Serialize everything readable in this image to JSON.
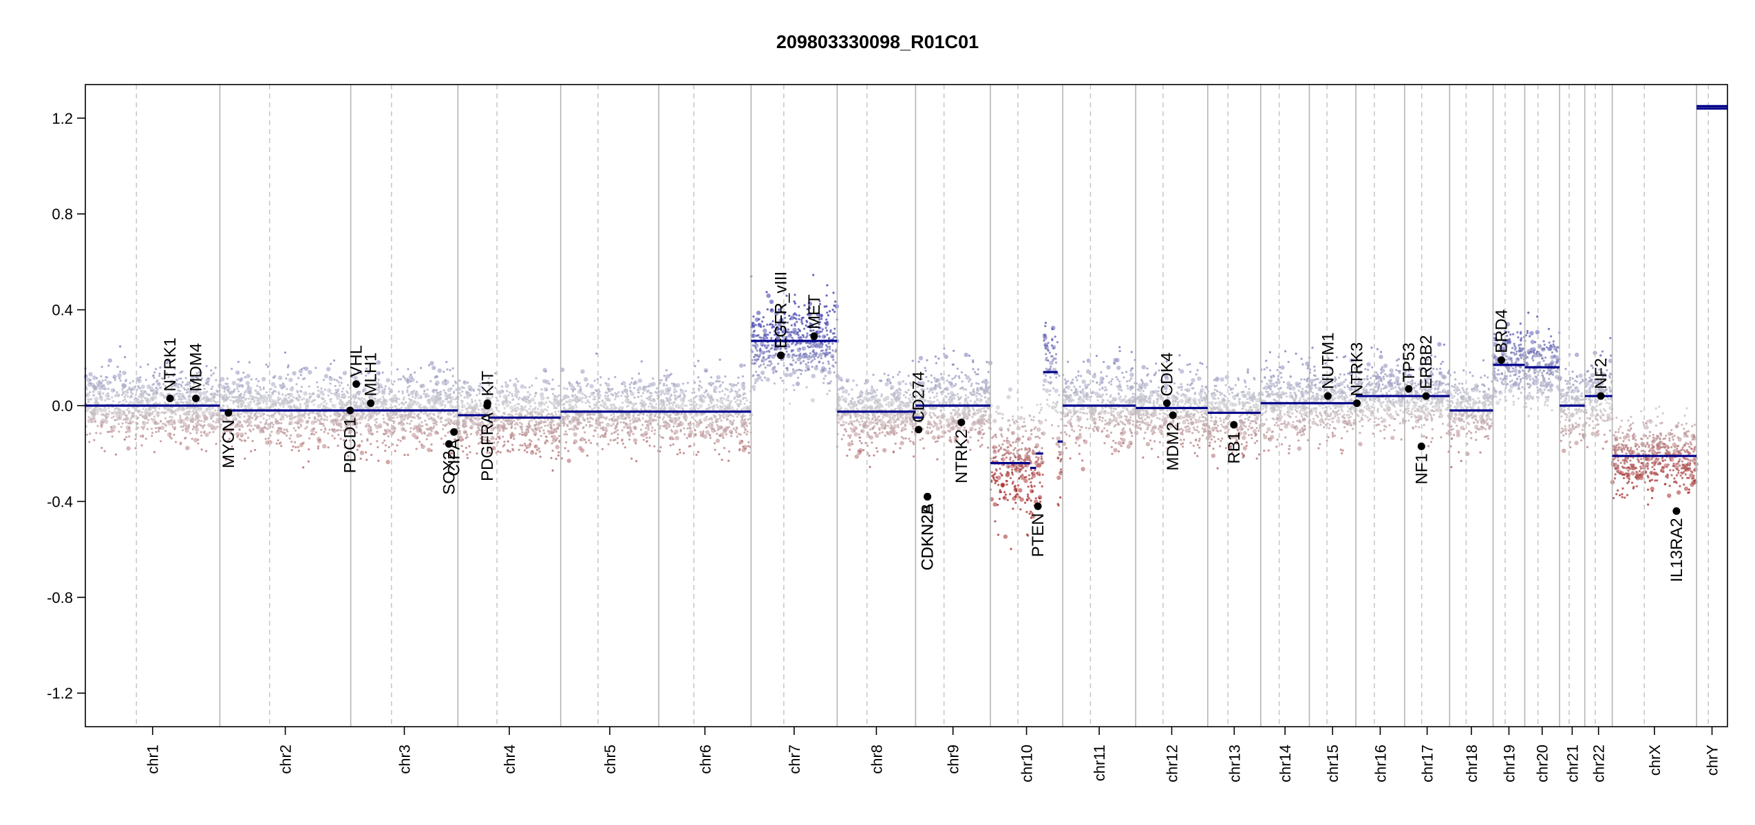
{
  "chart_data": {
    "type": "scatter",
    "title": "209803330098_R01C01",
    "xlabel": "",
    "ylabel": "",
    "ylim": [
      -1.34,
      1.34
    ],
    "yticks": [
      "1.2",
      "0.8",
      "0.4",
      "0.0",
      "-0.4",
      "-0.8",
      "-1.2"
    ],
    "chromosomes": [
      {
        "name": "chr1",
        "length": 248.9
      },
      {
        "name": "chr2",
        "length": 242.2
      },
      {
        "name": "chr3",
        "length": 198.3
      },
      {
        "name": "chr4",
        "length": 190.2
      },
      {
        "name": "chr5",
        "length": 181.5
      },
      {
        "name": "chr6",
        "length": 170.8
      },
      {
        "name": "chr7",
        "length": 159.3
      },
      {
        "name": "chr8",
        "length": 145.1
      },
      {
        "name": "chr9",
        "length": 138.4
      },
      {
        "name": "chr10",
        "length": 133.8
      },
      {
        "name": "chr11",
        "length": 135.1
      },
      {
        "name": "chr12",
        "length": 133.3
      },
      {
        "name": "chr13",
        "length": 98.0
      },
      {
        "name": "chr14",
        "length": 90.0
      },
      {
        "name": "chr15",
        "length": 86.0
      },
      {
        "name": "chr16",
        "length": 90.3
      },
      {
        "name": "chr17",
        "length": 83.3
      },
      {
        "name": "chr18",
        "length": 80.4
      },
      {
        "name": "chr19",
        "length": 58.6
      },
      {
        "name": "chr20",
        "length": 64.4
      },
      {
        "name": "chr21",
        "length": 46.7
      },
      {
        "name": "chr22",
        "length": 50.8
      },
      {
        "name": "chrX",
        "length": 156.0
      },
      {
        "name": "chrY",
        "length": 57.2
      }
    ],
    "segments": [
      {
        "chr": "chr1",
        "start": 0,
        "end": 1,
        "value": 0.0
      },
      {
        "chr": "chr2",
        "start": 0,
        "end": 1,
        "value": -0.02
      },
      {
        "chr": "chr3",
        "start": 0,
        "end": 1,
        "value": -0.02
      },
      {
        "chr": "chr4",
        "start": 0,
        "end": 0.3,
        "value": -0.04
      },
      {
        "chr": "chr4",
        "start": 0.3,
        "end": 1,
        "value": -0.05
      },
      {
        "chr": "chr5",
        "start": 0,
        "end": 1,
        "value": -0.025
      },
      {
        "chr": "chr6",
        "start": 0,
        "end": 1,
        "value": -0.025
      },
      {
        "chr": "chr7",
        "start": 0,
        "end": 1,
        "value": 0.27
      },
      {
        "chr": "chr8",
        "start": 0,
        "end": 1,
        "value": -0.025
      },
      {
        "chr": "chr8",
        "start": 0.98,
        "end": 1.1,
        "value": -0.05
      },
      {
        "chr": "chr9",
        "start": 0,
        "end": 1,
        "value": 0.0
      },
      {
        "chr": "chr10",
        "start": 0,
        "end": 0.55,
        "value": -0.24
      },
      {
        "chr": "chr10",
        "start": 0.55,
        "end": 0.63,
        "value": -0.26
      },
      {
        "chr": "chr10",
        "start": 0.63,
        "end": 0.73,
        "value": -0.2
      },
      {
        "chr": "chr10",
        "start": 0.73,
        "end": 0.93,
        "value": 0.14
      },
      {
        "chr": "chr10",
        "start": 0.93,
        "end": 1,
        "value": -0.15
      },
      {
        "chr": "chr11",
        "start": 0,
        "end": 1,
        "value": 0.0
      },
      {
        "chr": "chr12",
        "start": 0,
        "end": 1,
        "value": -0.01
      },
      {
        "chr": "chr13",
        "start": 0,
        "end": 1,
        "value": -0.03
      },
      {
        "chr": "chr14",
        "start": 0,
        "end": 1,
        "value": 0.01
      },
      {
        "chr": "chr15",
        "start": 0,
        "end": 1,
        "value": 0.01
      },
      {
        "chr": "chr16",
        "start": 0,
        "end": 1,
        "value": 0.04
      },
      {
        "chr": "chr17",
        "start": 0,
        "end": 1,
        "value": 0.04
      },
      {
        "chr": "chr18",
        "start": 0,
        "end": 1,
        "value": -0.02
      },
      {
        "chr": "chr19",
        "start": 0,
        "end": 1,
        "value": 0.17
      },
      {
        "chr": "chr20",
        "start": 0,
        "end": 1,
        "value": 0.16
      },
      {
        "chr": "chr21",
        "start": 0,
        "end": 1,
        "value": 0.0
      },
      {
        "chr": "chr22",
        "start": 0,
        "end": 1,
        "value": 0.04
      },
      {
        "chrX": true,
        "chr": "chrX",
        "start": 0,
        "end": 1,
        "value": -0.21
      },
      {
        "chr": "chrY",
        "start": 0,
        "end": 1,
        "value": 1.24
      },
      {
        "chr": "chrY",
        "start": 0,
        "end": 1,
        "value": 1.25
      }
    ],
    "genes": [
      {
        "name": "NTRK1",
        "chr": "chr1",
        "pos": 156.8,
        "value": 0.03,
        "label_side": "above"
      },
      {
        "name": "MDM4",
        "chr": "chr1",
        "pos": 204.5,
        "value": 0.03,
        "label_side": "above"
      },
      {
        "name": "MYCN",
        "chr": "chr2",
        "pos": 15.9,
        "value": -0.03,
        "label_side": "below"
      },
      {
        "name": "VHL",
        "chr": "chr3",
        "pos": 10.2,
        "value": 0.09,
        "label_side": "above"
      },
      {
        "name": "PDCD1",
        "chr": "chr2",
        "pos": 241.0,
        "value": -0.02,
        "label_side": "below"
      },
      {
        "name": "MLH1",
        "chr": "chr3",
        "pos": 37.0,
        "value": 0.01,
        "label_side": "above"
      },
      {
        "name": "SOX2",
        "chr": "chr3",
        "pos": 181.7,
        "value": -0.16,
        "label_side": "below"
      },
      {
        "name": "CIPA",
        "chr": "chr3",
        "pos": 191.0,
        "value": -0.11,
        "label_side": "below"
      },
      {
        "name": "PDGFRA",
        "chr": "chr4",
        "pos": 54.2,
        "value": 0.0,
        "label_side": "below"
      },
      {
        "name": "KIT",
        "chr": "chr4",
        "pos": 54.7,
        "value": 0.01,
        "label_side": "above"
      },
      {
        "name": "EGFR",
        "chr": "chr7",
        "pos": 55.1,
        "value": 0.21,
        "label_side": "above"
      },
      {
        "name": "EGFR_vIII",
        "chr": "chr7",
        "pos": 55.2,
        "value": 0.21,
        "label_side": "above"
      },
      {
        "name": "MET",
        "chr": "chr7",
        "pos": 116.7,
        "value": 0.29,
        "label_side": "above"
      },
      {
        "name": "CD274",
        "chr": "chr9",
        "pos": 5.5,
        "value": -0.1,
        "label_side": "above"
      },
      {
        "name": "CDKN2A",
        "chr": "chr9",
        "pos": 21.9,
        "value": -0.38,
        "label_side": "below"
      },
      {
        "name": "CDKN2B",
        "chr": "chr9",
        "pos": 22.0,
        "value": -0.38,
        "label_side": "below"
      },
      {
        "name": "NTRK2",
        "chr": "chr9",
        "pos": 84.7,
        "value": -0.07,
        "label_side": "below"
      },
      {
        "name": "PTEN",
        "chr": "chr10",
        "pos": 87.9,
        "value": -0.42,
        "label_side": "below"
      },
      {
        "name": "CDK4",
        "chr": "chr12",
        "pos": 57.7,
        "value": 0.01,
        "label_side": "above"
      },
      {
        "name": "MDM2",
        "chr": "chr12",
        "pos": 68.8,
        "value": -0.04,
        "label_side": "below"
      },
      {
        "name": "RB1",
        "chr": "chr13",
        "pos": 48.3,
        "value": -0.08,
        "label_side": "below"
      },
      {
        "name": "NUTM1",
        "chr": "chr15",
        "pos": 34.3,
        "value": 0.04,
        "label_side": "above"
      },
      {
        "name": "NTRK3",
        "chr": "chr15",
        "pos": 88.0,
        "value": 0.01,
        "label_side": "above"
      },
      {
        "name": "TP53",
        "chr": "chr17",
        "pos": 7.6,
        "value": 0.07,
        "label_side": "above"
      },
      {
        "name": "NF1",
        "chr": "chr17",
        "pos": 31.1,
        "value": -0.17,
        "label_side": "below"
      },
      {
        "name": "ERBB2",
        "chr": "chr17",
        "pos": 39.7,
        "value": 0.04,
        "label_side": "above"
      },
      {
        "name": "BRD4",
        "chr": "chr19",
        "pos": 15.3,
        "value": 0.19,
        "label_side": "above"
      },
      {
        "name": "NF2",
        "chr": "chr22",
        "pos": 29.6,
        "value": 0.04,
        "label_side": "above"
      },
      {
        "name": "IL13RA2",
        "chr": "chrX",
        "pos": 118.8,
        "value": -0.44,
        "label_side": "below"
      }
    ],
    "chrom_baselines": {
      "chr1": 0.0,
      "chr2": -0.02,
      "chr3": -0.02,
      "chr4": -0.045,
      "chr5": -0.025,
      "chr6": -0.025,
      "chr7": 0.27,
      "chr8": -0.025,
      "chr9": 0.0,
      "chr10": -0.1,
      "chr11": 0.0,
      "chr12": -0.01,
      "chr13": -0.03,
      "chr14": 0.01,
      "chr15": 0.01,
      "chr16": 0.04,
      "chr17": 0.04,
      "chr18": -0.02,
      "chr19": 0.17,
      "chr20": 0.16,
      "chr21": 0.0,
      "chr22": 0.04,
      "chrX": -0.21,
      "chrY": 1.24
    },
    "colors": {
      "segment": "#00008b",
      "gain": "#3a3aa0",
      "neutral": "#c8c8cc",
      "loss": "#a52a2a",
      "chrom_line": "#b4b4b4",
      "centromere_line": "#c8c8c8",
      "gene_point": "#000000"
    }
  }
}
